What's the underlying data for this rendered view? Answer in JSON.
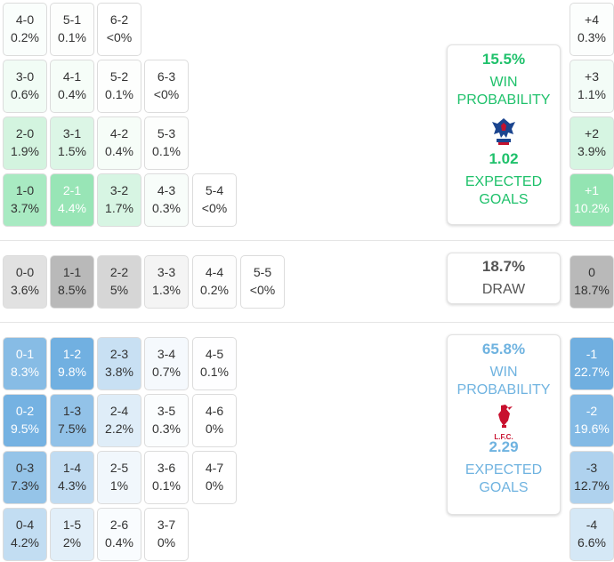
{
  "home": {
    "win_pct": "15.5%",
    "win_label": "WIN PROBABILITY",
    "xg": "1.02",
    "xg_label": "EXPECTED GOALS",
    "crest_icon": "crystal-palace-eagle-icon",
    "color": "#1fc16b"
  },
  "draw": {
    "pct": "18.7%",
    "label": "DRAW"
  },
  "away": {
    "win_pct": "65.8%",
    "win_label": "WIN PROBABILITY",
    "xg": "2.29",
    "xg_label": "EXPECTED GOALS",
    "crest_icon": "liverpool-liverbird-icon",
    "crest_text": "L.F.C.",
    "color": "#6fb3e0"
  },
  "home_scores": [
    [
      [
        "4-0",
        "0.2%"
      ],
      [
        "5-1",
        "0.1%"
      ],
      [
        "6-2",
        "<0%"
      ]
    ],
    [
      [
        "3-0",
        "0.6%"
      ],
      [
        "4-1",
        "0.4%"
      ],
      [
        "5-2",
        "0.1%"
      ],
      [
        "6-3",
        "<0%"
      ]
    ],
    [
      [
        "2-0",
        "1.9%"
      ],
      [
        "3-1",
        "1.5%"
      ],
      [
        "4-2",
        "0.4%"
      ],
      [
        "5-3",
        "0.1%"
      ]
    ],
    [
      [
        "1-0",
        "3.7%"
      ],
      [
        "2-1",
        "4.4%"
      ],
      [
        "3-2",
        "1.7%"
      ],
      [
        "4-3",
        "0.3%"
      ],
      [
        "5-4",
        "<0%"
      ]
    ]
  ],
  "draw_scores": [
    [
      "0-0",
      "3.6%"
    ],
    [
      "1-1",
      "8.5%"
    ],
    [
      "2-2",
      "5%"
    ],
    [
      "3-3",
      "1.3%"
    ],
    [
      "4-4",
      "0.2%"
    ],
    [
      "5-5",
      "<0%"
    ]
  ],
  "away_scores": [
    [
      [
        "0-1",
        "8.3%"
      ],
      [
        "1-2",
        "9.8%"
      ],
      [
        "2-3",
        "3.8%"
      ],
      [
        "3-4",
        "0.7%"
      ],
      [
        "4-5",
        "0.1%"
      ]
    ],
    [
      [
        "0-2",
        "9.5%"
      ],
      [
        "1-3",
        "7.5%"
      ],
      [
        "2-4",
        "2.2%"
      ],
      [
        "3-5",
        "0.3%"
      ],
      [
        "4-6",
        "0%"
      ]
    ],
    [
      [
        "0-3",
        "7.3%"
      ],
      [
        "1-4",
        "4.3%"
      ],
      [
        "2-5",
        "1%"
      ],
      [
        "3-6",
        "0.1%"
      ],
      [
        "4-7",
        "0%"
      ]
    ],
    [
      [
        "0-4",
        "4.2%"
      ],
      [
        "1-5",
        "2%"
      ],
      [
        "2-6",
        "0.4%"
      ],
      [
        "3-7",
        "0%"
      ]
    ]
  ],
  "margins_home": [
    [
      "+4",
      "0.3%"
    ],
    [
      "+3",
      "1.1%"
    ],
    [
      "+2",
      "3.9%"
    ],
    [
      "+1",
      "10.2%"
    ]
  ],
  "margin_draw": [
    "0",
    "18.7%"
  ],
  "margins_away": [
    [
      "-1",
      "22.7%"
    ],
    [
      "-2",
      "19.6%"
    ],
    [
      "-3",
      "12.7%"
    ],
    [
      "-4",
      "6.6%"
    ]
  ]
}
